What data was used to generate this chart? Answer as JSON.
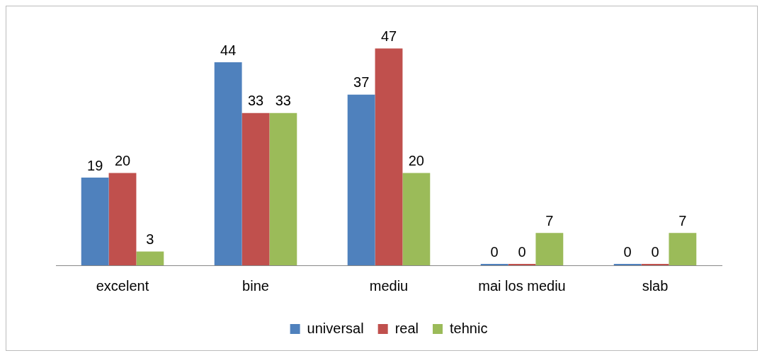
{
  "chart_data": {
    "type": "bar",
    "categories": [
      "excelent",
      "bine",
      "mediu",
      "mai los mediu",
      "slab"
    ],
    "series": [
      {
        "name": "universal",
        "color": "#4f81bd",
        "values": [
          19,
          44,
          37,
          0,
          0
        ]
      },
      {
        "name": "real",
        "color": "#c0504d",
        "values": [
          20,
          33,
          47,
          0,
          0
        ]
      },
      {
        "name": "tehnic",
        "color": "#9bbb59",
        "values": [
          3,
          33,
          20,
          7,
          7
        ]
      }
    ],
    "data_labels": true,
    "legend": "bottom",
    "grid": false
  }
}
